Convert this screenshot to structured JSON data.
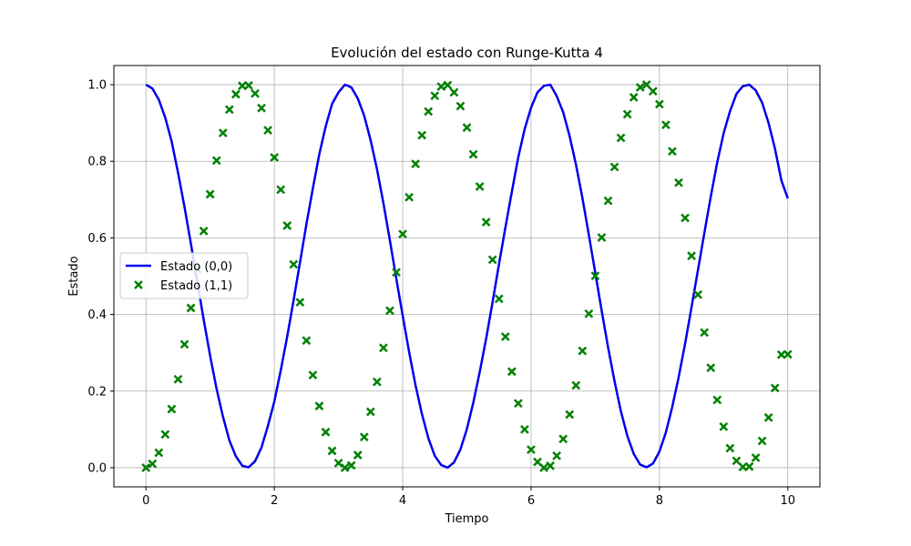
{
  "chart_data": {
    "type": "line",
    "title": "Evolución del estado con Runge-Kutta 4",
    "xlabel": "Tiempo",
    "ylabel": "Estado",
    "xlim": [
      -0.5,
      10.5
    ],
    "ylim": [
      -0.05,
      1.05
    ],
    "xticks": [
      0,
      2,
      4,
      6,
      8,
      10
    ],
    "xtick_labels": [
      "0",
      "2",
      "4",
      "6",
      "8",
      "10"
    ],
    "yticks": [
      0.0,
      0.2,
      0.4,
      0.6,
      0.8,
      1.0
    ],
    "ytick_labels": [
      "0.0",
      "0.2",
      "0.4",
      "0.6",
      "0.8",
      "1.0"
    ],
    "grid": true,
    "legend_position": "center-left",
    "series": [
      {
        "name": "Estado (0,0)",
        "style": "line",
        "color": "#0000ee",
        "x": [
          0.0,
          0.1,
          0.2,
          0.3,
          0.4,
          0.5,
          0.6,
          0.7,
          0.8,
          0.9,
          1.0,
          1.1,
          1.2,
          1.3,
          1.4,
          1.5,
          1.6,
          1.7,
          1.8,
          1.9,
          2.0,
          2.1,
          2.2,
          2.3,
          2.4,
          2.5,
          2.6,
          2.7,
          2.8,
          2.9,
          3.0,
          3.1,
          3.2,
          3.3,
          3.4,
          3.5,
          3.6,
          3.7,
          3.8,
          3.9,
          4.0,
          4.1,
          4.2,
          4.3,
          4.4,
          4.5,
          4.6,
          4.7,
          4.8,
          4.9,
          5.0,
          5.1,
          5.2,
          5.3,
          5.4,
          5.5,
          5.6,
          5.7,
          5.8,
          5.9,
          6.0,
          6.1,
          6.2,
          6.3,
          6.4,
          6.5,
          6.6,
          6.7,
          6.8,
          6.9,
          7.0,
          7.1,
          7.2,
          7.3,
          7.4,
          7.5,
          7.6,
          7.7,
          7.8,
          7.9,
          8.0,
          8.1,
          8.2,
          8.3,
          8.4,
          8.5,
          8.6,
          8.7,
          8.8,
          8.9,
          9.0,
          9.1,
          9.2,
          9.3,
          9.4,
          9.5,
          9.6,
          9.7,
          9.8,
          9.9,
          10.0
        ],
        "y": [
          1.0,
          0.99,
          0.961,
          0.914,
          0.852,
          0.77,
          0.681,
          0.585,
          0.485,
          0.386,
          0.292,
          0.206,
          0.133,
          0.071,
          0.03,
          0.005,
          0.001,
          0.017,
          0.053,
          0.109,
          0.173,
          0.254,
          0.342,
          0.437,
          0.536,
          0.636,
          0.729,
          0.818,
          0.891,
          0.95,
          0.98,
          1.0,
          0.993,
          0.964,
          0.919,
          0.855,
          0.779,
          0.69,
          0.594,
          0.494,
          0.397,
          0.302,
          0.215,
          0.14,
          0.077,
          0.031,
          0.007,
          0.0,
          0.014,
          0.048,
          0.101,
          0.17,
          0.25,
          0.337,
          0.432,
          0.531,
          0.627,
          0.72,
          0.81,
          0.884,
          0.94,
          0.98,
          0.997,
          1.0,
          0.97,
          0.928,
          0.866,
          0.791,
          0.704,
          0.608,
          0.509,
          0.41,
          0.314,
          0.226,
          0.147,
          0.083,
          0.036,
          0.008,
          0.001,
          0.011,
          0.042,
          0.092,
          0.159,
          0.237,
          0.324,
          0.419,
          0.516,
          0.613,
          0.708,
          0.797,
          0.873,
          0.931,
          0.976,
          0.996,
          1.0,
          0.985,
          0.953,
          0.9,
          0.833,
          0.75,
          0.703
        ]
      },
      {
        "name": "Estado (1,1)",
        "style": "scatter",
        "marker": "x",
        "color": "#008000",
        "x": [
          0.0,
          0.1,
          0.2,
          0.3,
          0.4,
          0.5,
          0.6,
          0.7,
          0.8,
          0.9,
          1.0,
          1.1,
          1.2,
          1.3,
          1.4,
          1.5,
          1.6,
          1.7,
          1.8,
          1.9,
          2.0,
          2.1,
          2.2,
          2.3,
          2.4,
          2.5,
          2.6,
          2.7,
          2.8,
          2.9,
          3.0,
          3.1,
          3.2,
          3.3,
          3.4,
          3.5,
          3.6,
          3.7,
          3.8,
          3.9,
          4.0,
          4.1,
          4.2,
          4.3,
          4.4,
          4.5,
          4.6,
          4.7,
          4.8,
          4.9,
          5.0,
          5.1,
          5.2,
          5.3,
          5.4,
          5.5,
          5.6,
          5.7,
          5.8,
          5.9,
          6.0,
          6.1,
          6.2,
          6.3,
          6.4,
          6.5,
          6.6,
          6.7,
          6.8,
          6.9,
          7.0,
          7.1,
          7.2,
          7.3,
          7.4,
          7.5,
          7.6,
          7.7,
          7.8,
          7.9,
          8.0,
          8.1,
          8.2,
          8.3,
          8.4,
          8.5,
          8.6,
          8.7,
          8.8,
          8.9,
          9.0,
          9.1,
          9.2,
          9.3,
          9.4,
          9.5,
          9.6,
          9.7,
          9.8,
          9.9,
          10.0
        ],
        "y": [
          0.0,
          0.01,
          0.039,
          0.087,
          0.153,
          0.231,
          0.322,
          0.417,
          0.518,
          0.618,
          0.714,
          0.802,
          0.874,
          0.935,
          0.975,
          0.997,
          0.998,
          0.977,
          0.939,
          0.881,
          0.81,
          0.726,
          0.632,
          0.531,
          0.432,
          0.332,
          0.242,
          0.161,
          0.093,
          0.044,
          0.012,
          0.0,
          0.006,
          0.033,
          0.08,
          0.146,
          0.224,
          0.313,
          0.41,
          0.51,
          0.61,
          0.706,
          0.793,
          0.868,
          0.93,
          0.971,
          0.995,
          0.999,
          0.98,
          0.944,
          0.888,
          0.818,
          0.734,
          0.641,
          0.543,
          0.441,
          0.342,
          0.251,
          0.168,
          0.1,
          0.047,
          0.015,
          0.0,
          0.005,
          0.031,
          0.075,
          0.139,
          0.215,
          0.305,
          0.402,
          0.501,
          0.601,
          0.697,
          0.785,
          0.861,
          0.923,
          0.967,
          0.993,
          1.0,
          0.983,
          0.949,
          0.895,
          0.826,
          0.744,
          0.652,
          0.553,
          0.452,
          0.353,
          0.261,
          0.177,
          0.107,
          0.051,
          0.018,
          0.002,
          0.003,
          0.026,
          0.07,
          0.131,
          0.208,
          0.295,
          0.296
        ]
      }
    ]
  }
}
